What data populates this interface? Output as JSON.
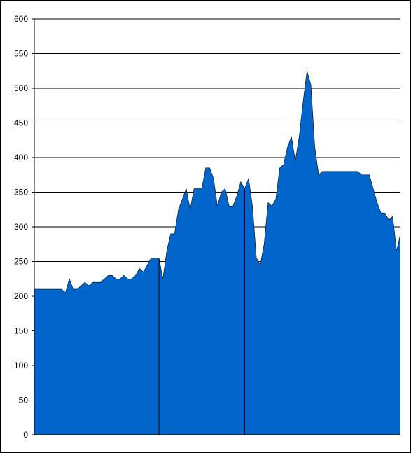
{
  "chart_data": {
    "type": "area",
    "title": "",
    "xlabel": "",
    "ylabel": "",
    "ylim": [
      0,
      600
    ],
    "y_ticks": [
      "0",
      "50",
      "100",
      "150",
      "200",
      "250",
      "300",
      "350",
      "400",
      "450",
      "500",
      "550",
      "600"
    ],
    "grid": "horizontal",
    "legend": "none",
    "colors": {
      "fill": "#0066CC",
      "line": "#000000",
      "grid": "#000000"
    },
    "series": [
      {
        "values": [
          210,
          210,
          210,
          210,
          210,
          210,
          210,
          210,
          205,
          225,
          210,
          210,
          215,
          220,
          215,
          220,
          220,
          220,
          225,
          230,
          230,
          225,
          225,
          230,
          225,
          225,
          230,
          240,
          235,
          245,
          255,
          255,
          255
        ]
      },
      {
        "values": [
          255,
          225,
          265,
          290,
          290,
          325,
          340,
          355,
          325,
          355,
          355,
          355,
          385,
          385,
          370,
          330,
          350,
          355,
          330,
          330,
          345,
          365,
          355
        ]
      },
      {
        "values": [
          355,
          370,
          330,
          255,
          245,
          275,
          335,
          330,
          340,
          385,
          390,
          415,
          430,
          395,
          430,
          480,
          525,
          505,
          415,
          375,
          380,
          380,
          380,
          380,
          380,
          380,
          380,
          380,
          380,
          380,
          375,
          375,
          375,
          355,
          335,
          320,
          320,
          310,
          315,
          265,
          290
        ]
      }
    ]
  }
}
